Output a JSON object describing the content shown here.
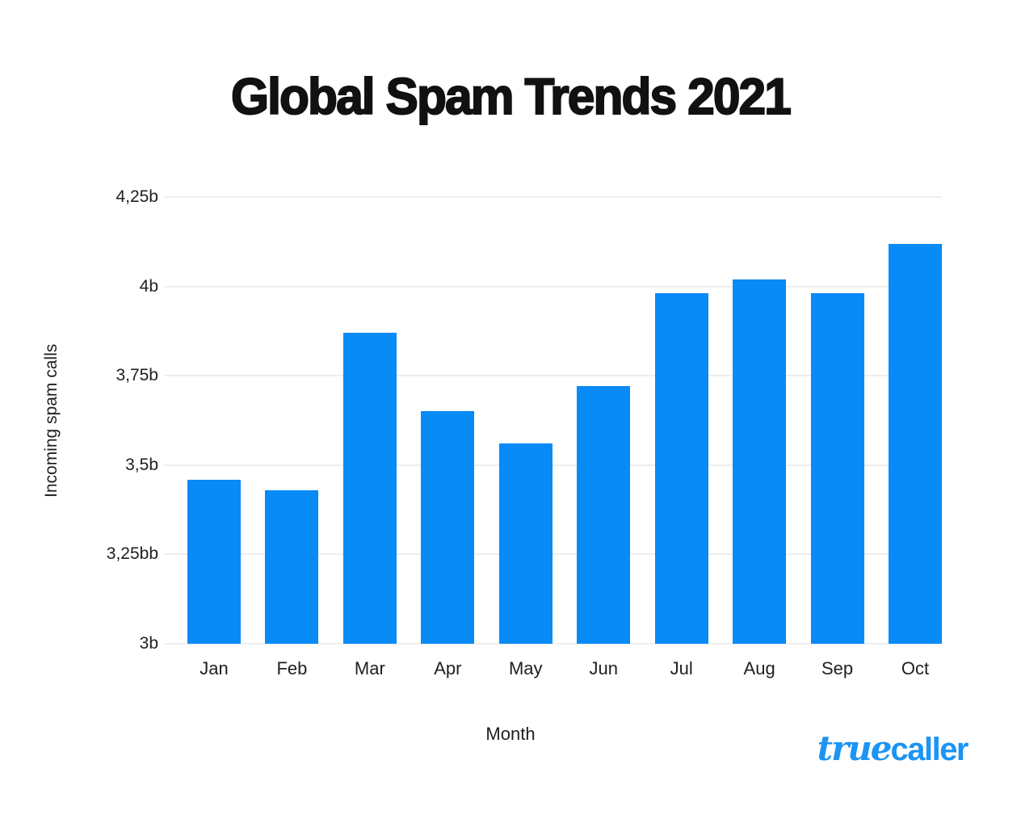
{
  "chart_data": {
    "type": "bar",
    "title": "Global Spam Trends 2021",
    "xlabel": "Month",
    "ylabel": "Incoming spam calls",
    "categories": [
      "Jan",
      "Feb",
      "Mar",
      "Apr",
      "May",
      "Jun",
      "Jul",
      "Aug",
      "Sep",
      "Oct"
    ],
    "values": [
      3.46,
      3.43,
      3.87,
      3.65,
      3.56,
      3.72,
      3.98,
      4.02,
      3.98,
      4.12
    ],
    "ylim": [
      3,
      4.25
    ],
    "yticks": [
      {
        "value": 4.25,
        "label": "4,25b"
      },
      {
        "value": 4.0,
        "label": "4b"
      },
      {
        "value": 3.75,
        "label": "3,75b"
      },
      {
        "value": 3.5,
        "label": "3,5b"
      },
      {
        "value": 3.25,
        "label": "3,25bb"
      },
      {
        "value": 3.0,
        "label": "3b"
      }
    ],
    "grid": true,
    "legend_position": "none",
    "bar_color": "#088af7",
    "gridline_color": "#eeeeee"
  },
  "branding": {
    "logo_script": "true",
    "logo_sans": "caller",
    "logo_color": "#1d94f2"
  }
}
